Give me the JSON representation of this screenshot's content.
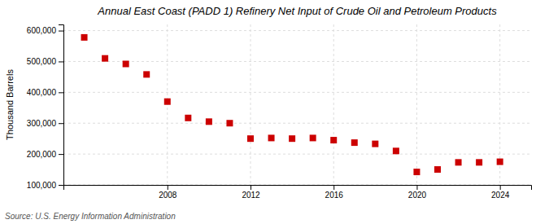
{
  "chart_data": {
    "type": "scatter",
    "title": "Annual East Coast (PADD 1) Refinery Net Input of Crude Oil and Petroleum Products",
    "ylabel": "Thousand Barrels",
    "source": "Source: U.S. Energy Information Administration",
    "x": [
      2004,
      2005,
      2006,
      2007,
      2008,
      2009,
      2010,
      2011,
      2012,
      2013,
      2014,
      2015,
      2016,
      2017,
      2018,
      2019,
      2020,
      2021,
      2022,
      2023,
      2024
    ],
    "values": [
      578000,
      510000,
      492000,
      458000,
      370000,
      317000,
      305000,
      300000,
      250000,
      252000,
      250000,
      252000,
      245000,
      237000,
      233000,
      210000,
      142000,
      150000,
      173000,
      173000,
      175000
    ],
    "color": "#cc0000",
    "marker": "square",
    "xlim": [
      2003,
      2025.5
    ],
    "xticks": [
      2008,
      2012,
      2016,
      2020,
      2024
    ],
    "ylim": [
      100000,
      620000
    ],
    "yticks": [
      {
        "value": 100000,
        "label": "100,000"
      },
      {
        "value": 200000,
        "label": "200,000"
      },
      {
        "value": 300000,
        "label": "300,000"
      },
      {
        "value": 400000,
        "label": "400,000"
      },
      {
        "value": 500000,
        "label": "500,000"
      },
      {
        "value": 600000,
        "label": "600,000"
      }
    ],
    "grid": true
  }
}
